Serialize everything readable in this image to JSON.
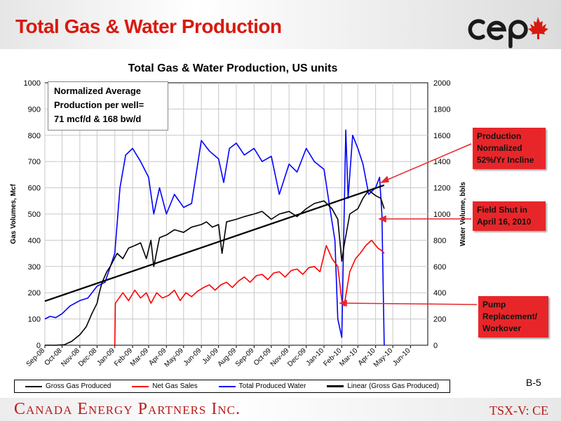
{
  "slide": {
    "title": "Total Gas & Water Production",
    "company": "Canada Energy Partners Inc.",
    "ticker": "TSX-V: CE",
    "slide_number": "B-5",
    "logo_text": "cep"
  },
  "annotations": {
    "note": [
      "Normalized Average",
      "Production per well=",
      "71 mcf/d & 168 bw/d"
    ],
    "callout_normalized": [
      "Production",
      "Normalized",
      "52%/Yr Incline"
    ],
    "callout_shutin": [
      "Field Shut in",
      "April 16, 2010"
    ],
    "callout_pump": [
      "Pump",
      "Replacement/",
      "Workover"
    ]
  },
  "colors": {
    "title_red": "#d81a10",
    "callout_red": "#e8262a",
    "gross": "#000000",
    "net": "#ff0000",
    "water": "#0000ff",
    "linear": "#000000"
  },
  "chart_data": {
    "type": "line",
    "title": "Total Gas & Water Production, US units",
    "ylabel_left": "Gas Volumes, Mcf",
    "ylabel_right": "Water Volume, bbls",
    "ylim_left": [
      0,
      1000
    ],
    "ylim_right": [
      0,
      2000
    ],
    "yticks_left": [
      "0",
      "100",
      "200",
      "300",
      "400",
      "500",
      "600",
      "700",
      "800",
      "900",
      "1000"
    ],
    "yticks_right": [
      "0",
      "200",
      "400",
      "600",
      "800",
      "1000",
      "1200",
      "1400",
      "1600",
      "1800",
      "2000"
    ],
    "x_categories": [
      "Sep-08",
      "Oct-08",
      "Nov-08",
      "Dec-08",
      "Jan-09",
      "Feb-09",
      "Mar-09",
      "Apr-09",
      "May-09",
      "Jun-09",
      "Jul-09",
      "Aug-09",
      "Sep-09",
      "Oct-09",
      "Nov-09",
      "Dec-09",
      "Jan-10",
      "Feb-10",
      "Mar-10",
      "Apr-10",
      "May-10",
      "Jun-10"
    ],
    "grid": true,
    "legend_position": "bottom",
    "series": [
      {
        "name": "Gross Gas Produced",
        "axis": "left",
        "x": [
          "2008-09-01",
          "2008-09-20",
          "2008-10-05",
          "2008-10-18",
          "2008-11-01",
          "2008-11-12",
          "2008-11-22",
          "2008-12-01",
          "2008-12-05",
          "2008-12-10",
          "2008-12-18",
          "2008-12-24",
          "2009-01-05",
          "2009-01-15",
          "2009-01-25",
          "2009-02-05",
          "2009-02-15",
          "2009-02-25",
          "2009-03-05",
          "2009-03-10",
          "2009-03-20",
          "2009-04-01",
          "2009-04-15",
          "2009-05-01",
          "2009-05-15",
          "2009-06-01",
          "2009-06-10",
          "2009-06-20",
          "2009-07-01",
          "2009-07-07",
          "2009-07-15",
          "2009-08-01",
          "2009-08-15",
          "2009-09-01",
          "2009-09-15",
          "2009-10-01",
          "2009-10-15",
          "2009-11-01",
          "2009-11-15",
          "2009-12-01",
          "2009-12-15",
          "2010-01-01",
          "2010-01-15",
          "2010-01-25",
          "2010-02-01",
          "2010-02-05",
          "2010-02-15",
          "2010-03-01",
          "2010-03-10",
          "2010-03-20",
          "2010-04-01",
          "2010-04-10",
          "2010-04-16"
        ],
        "values": [
          0,
          0,
          2,
          15,
          40,
          70,
          120,
          160,
          200,
          240,
          280,
          300,
          350,
          330,
          370,
          380,
          390,
          330,
          400,
          300,
          410,
          420,
          440,
          430,
          450,
          460,
          470,
          450,
          460,
          350,
          470,
          480,
          490,
          500,
          510,
          480,
          500,
          510,
          490,
          520,
          540,
          550,
          520,
          480,
          320,
          380,
          500,
          520,
          560,
          590,
          570,
          560,
          520
        ]
      },
      {
        "name": "Net Gas Sales",
        "axis": "left",
        "x": [
          "2009-01-01",
          "2009-01-02",
          "2009-01-15",
          "2009-01-25",
          "2009-02-05",
          "2009-02-15",
          "2009-02-25",
          "2009-03-05",
          "2009-03-15",
          "2009-03-25",
          "2009-04-05",
          "2009-04-15",
          "2009-04-25",
          "2009-05-05",
          "2009-05-15",
          "2009-05-25",
          "2009-06-05",
          "2009-06-15",
          "2009-06-25",
          "2009-07-05",
          "2009-07-15",
          "2009-07-25",
          "2009-08-05",
          "2009-08-15",
          "2009-08-25",
          "2009-09-05",
          "2009-09-15",
          "2009-09-25",
          "2009-10-05",
          "2009-10-15",
          "2009-10-25",
          "2009-11-05",
          "2009-11-15",
          "2009-11-25",
          "2009-12-05",
          "2009-12-15",
          "2009-12-25",
          "2010-01-05",
          "2010-01-15",
          "2010-01-25",
          "2010-02-01",
          "2010-02-05",
          "2010-02-15",
          "2010-02-25",
          "2010-03-05",
          "2010-03-15",
          "2010-03-25",
          "2010-04-05",
          "2010-04-12",
          "2010-04-16"
        ],
        "values": [
          0,
          160,
          200,
          170,
          210,
          180,
          200,
          160,
          200,
          180,
          190,
          210,
          170,
          200,
          185,
          205,
          220,
          230,
          210,
          230,
          240,
          220,
          245,
          260,
          240,
          265,
          270,
          250,
          275,
          280,
          260,
          285,
          290,
          270,
          295,
          300,
          280,
          380,
          330,
          300,
          170,
          150,
          280,
          330,
          350,
          380,
          400,
          370,
          360,
          350
        ]
      },
      {
        "name": "Total Produced Water",
        "axis": "right",
        "x": [
          "2008-09-01",
          "2008-09-10",
          "2008-09-20",
          "2008-10-01",
          "2008-10-15",
          "2008-11-01",
          "2008-11-15",
          "2008-12-01",
          "2008-12-15",
          "2009-01-01",
          "2009-01-10",
          "2009-01-20",
          "2009-02-01",
          "2009-02-15",
          "2009-03-01",
          "2009-03-10",
          "2009-03-20",
          "2009-04-01",
          "2009-04-15",
          "2009-05-01",
          "2009-05-15",
          "2009-06-01",
          "2009-06-15",
          "2009-07-01",
          "2009-07-10",
          "2009-07-20",
          "2009-08-01",
          "2009-08-15",
          "2009-09-01",
          "2009-09-15",
          "2009-10-01",
          "2009-10-15",
          "2009-11-01",
          "2009-11-15",
          "2009-12-01",
          "2009-12-15",
          "2010-01-01",
          "2010-01-10",
          "2010-01-20",
          "2010-01-25",
          "2010-02-01",
          "2010-02-08",
          "2010-02-12",
          "2010-02-20",
          "2010-03-01",
          "2010-03-10",
          "2010-03-20",
          "2010-04-01",
          "2010-04-08",
          "2010-04-12",
          "2010-04-16"
        ],
        "values": [
          200,
          220,
          210,
          240,
          300,
          340,
          360,
          450,
          480,
          700,
          1200,
          1450,
          1500,
          1400,
          1280,
          1000,
          1200,
          1000,
          1150,
          1050,
          1080,
          1560,
          1480,
          1420,
          1240,
          1500,
          1540,
          1450,
          1500,
          1400,
          1440,
          1150,
          1380,
          1320,
          1500,
          1400,
          1340,
          1080,
          800,
          200,
          60,
          1640,
          1120,
          1600,
          1500,
          1380,
          1150,
          1200,
          1280,
          1000,
          0
        ]
      },
      {
        "name": "Linear (Gross Gas Produced)",
        "axis": "left",
        "x": [
          "2008-09-01",
          "2010-04-16"
        ],
        "values": [
          168,
          610
        ]
      }
    ]
  }
}
